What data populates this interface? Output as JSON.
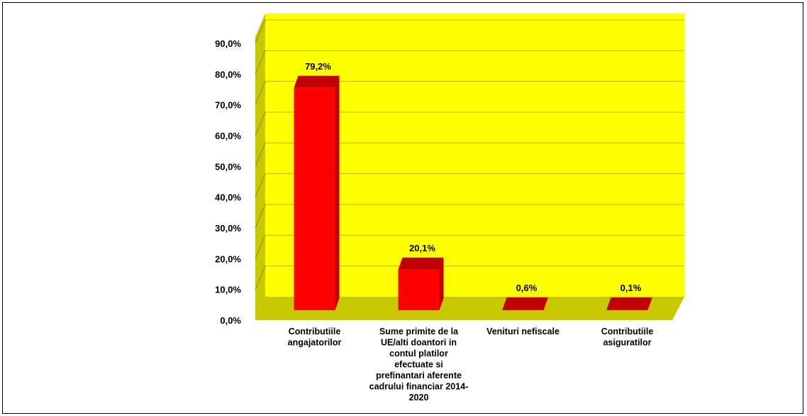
{
  "chart_data": {
    "type": "bar",
    "title": "",
    "xlabel": "",
    "ylabel": "",
    "categories": [
      [
        "Contributiile",
        "angajatorilor"
      ],
      [
        "Sume primite de la",
        "UE/alti doantori in",
        "contul platilor",
        "efectuate si",
        "prefinantari aferente",
        "cadrului financiar 2014-",
        "2020"
      ],
      [
        "Venituri nefiscale"
      ],
      [
        "Contributiile",
        "asiguratilor"
      ]
    ],
    "values": [
      79.2,
      20.1,
      0.6,
      0.1
    ],
    "value_labels": [
      "79,2%",
      "20,1%",
      "0,6%",
      "0,1%"
    ],
    "ylim": [
      0,
      90
    ],
    "y_ticks": [
      0,
      10,
      20,
      30,
      40,
      50,
      60,
      70,
      80,
      90
    ],
    "y_tick_labels": [
      "0,0%",
      "10,0%",
      "20,0%",
      "30,0%",
      "40,0%",
      "50,0%",
      "60,0%",
      "70,0%",
      "80,0%",
      "90,0%"
    ],
    "grid": true,
    "legend": "none",
    "style": "3d-column",
    "colors": {
      "back_wall": "#ffff00",
      "side_wall": "#c8c800",
      "floor": "#c8c800",
      "bar_front": "#ff0000",
      "bar_top": "#c00000",
      "bar_side": "#c00000",
      "gridline": "#b8b800"
    }
  }
}
